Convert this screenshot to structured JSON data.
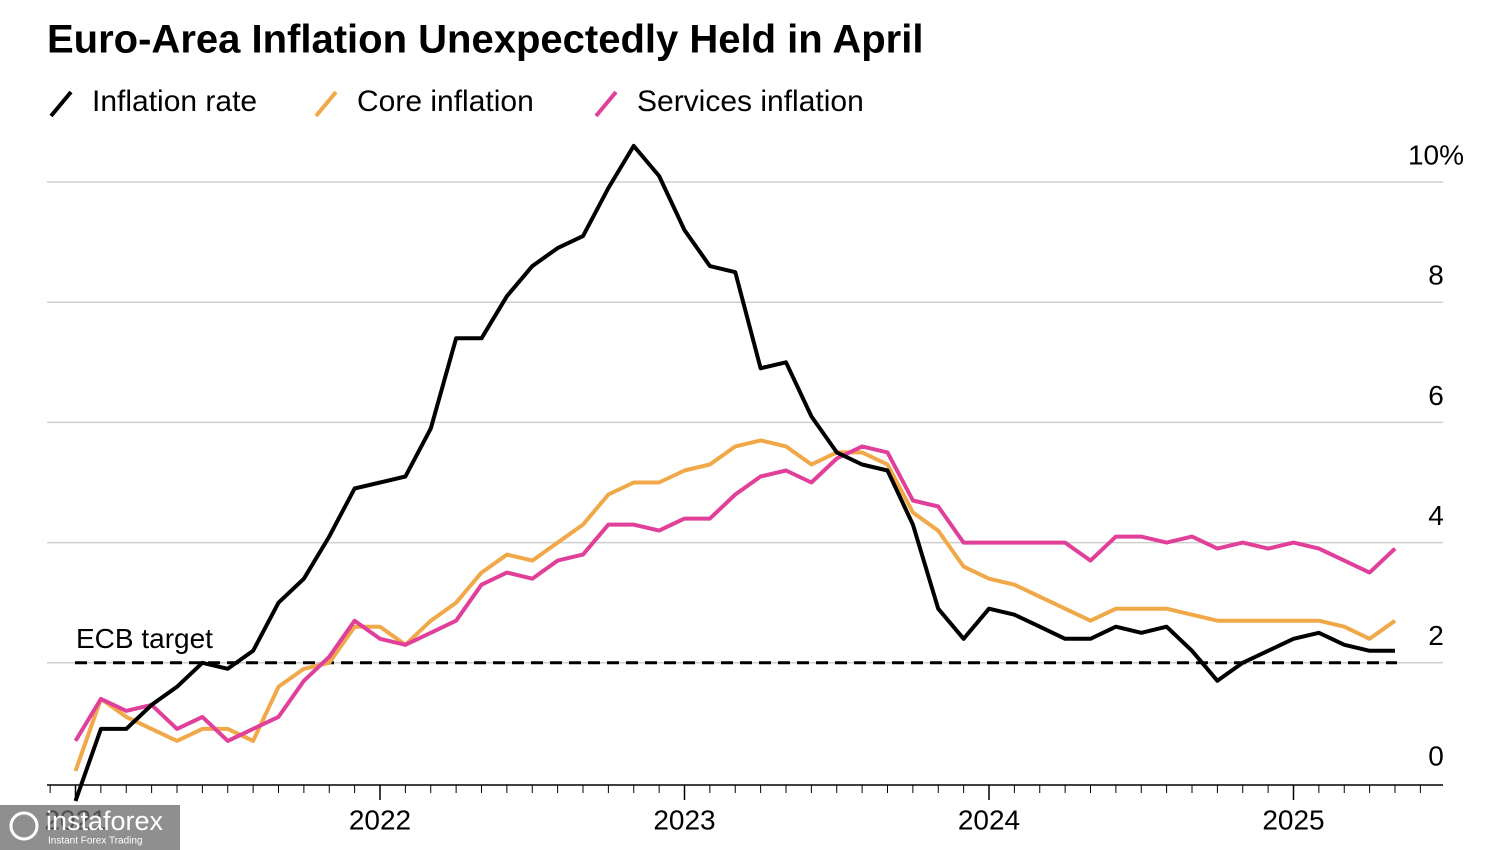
{
  "chart_data": {
    "type": "line",
    "title": "Euro-Area Inflation Unexpectedly Held in April",
    "x": [
      "2020-12",
      "2021-01",
      "2021-02",
      "2021-03",
      "2021-04",
      "2021-05",
      "2021-06",
      "2021-07",
      "2021-08",
      "2021-09",
      "2021-10",
      "2021-11",
      "2021-12",
      "2022-01",
      "2022-02",
      "2022-03",
      "2022-04",
      "2022-05",
      "2022-06",
      "2022-07",
      "2022-08",
      "2022-09",
      "2022-10",
      "2022-11",
      "2022-12",
      "2023-01",
      "2023-02",
      "2023-03",
      "2023-04",
      "2023-05",
      "2023-06",
      "2023-07",
      "2023-08",
      "2023-09",
      "2023-10",
      "2023-11",
      "2023-12",
      "2024-01",
      "2024-02",
      "2024-03",
      "2024-04",
      "2024-05",
      "2024-06",
      "2024-07",
      "2024-08",
      "2024-09",
      "2024-10",
      "2024-11",
      "2024-12",
      "2025-01",
      "2025-02",
      "2025-03",
      "2025-04"
    ],
    "series": [
      {
        "name": "Inflation rate",
        "color": "#000000",
        "values": [
          -0.3,
          0.9,
          0.9,
          1.3,
          1.6,
          2.0,
          1.9,
          2.2,
          3.0,
          3.4,
          4.1,
          4.9,
          5.0,
          5.1,
          5.9,
          7.4,
          7.4,
          8.1,
          8.6,
          8.9,
          9.1,
          9.9,
          10.6,
          10.1,
          9.2,
          8.6,
          8.5,
          6.9,
          7.0,
          6.1,
          5.5,
          5.3,
          5.2,
          4.3,
          2.9,
          2.4,
          2.9,
          2.8,
          2.6,
          2.4,
          2.4,
          2.6,
          2.5,
          2.6,
          2.2,
          1.7,
          2.0,
          2.2,
          2.4,
          2.5,
          2.3,
          2.2,
          2.2
        ]
      },
      {
        "name": "Core inflation",
        "color": "#f0a848",
        "values": [
          0.2,
          1.4,
          1.1,
          0.9,
          0.7,
          0.9,
          0.9,
          0.7,
          1.6,
          1.9,
          2.0,
          2.6,
          2.6,
          2.3,
          2.7,
          3.0,
          3.5,
          3.8,
          3.7,
          4.0,
          4.3,
          4.8,
          5.0,
          5.0,
          5.2,
          5.3,
          5.6,
          5.7,
          5.6,
          5.3,
          5.5,
          5.5,
          5.3,
          4.5,
          4.2,
          3.6,
          3.4,
          3.3,
          3.1,
          2.9,
          2.7,
          2.9,
          2.9,
          2.9,
          2.8,
          2.7,
          2.7,
          2.7,
          2.7,
          2.7,
          2.6,
          2.4,
          2.7
        ]
      },
      {
        "name": "Services inflation",
        "color": "#e0409a",
        "values": [
          0.7,
          1.4,
          1.2,
          1.3,
          0.9,
          1.1,
          0.7,
          0.9,
          1.1,
          1.7,
          2.1,
          2.7,
          2.4,
          2.3,
          2.5,
          2.7,
          3.3,
          3.5,
          3.4,
          3.7,
          3.8,
          4.3,
          4.3,
          4.2,
          4.4,
          4.4,
          4.8,
          5.1,
          5.2,
          5.0,
          5.4,
          5.6,
          5.5,
          4.7,
          4.6,
          4.0,
          4.0,
          4.0,
          4.0,
          4.0,
          3.7,
          4.1,
          4.1,
          4.0,
          4.1,
          3.9,
          4.0,
          3.9,
          4.0,
          3.9,
          3.7,
          3.5,
          3.9
        ]
      }
    ],
    "target": {
      "label": "ECB target",
      "value": 2
    },
    "xticks": [
      "2021",
      "2022",
      "2023",
      "2024",
      "2025"
    ],
    "ylim": [
      0,
      10
    ],
    "yticks": [
      0,
      2,
      4,
      6,
      8,
      {
        "value": 10,
        "label": "10%"
      }
    ],
    "grid": true,
    "legend": "top",
    "watermark": {
      "name": "instaforex",
      "tagline": "Instant Forex Trading"
    }
  }
}
